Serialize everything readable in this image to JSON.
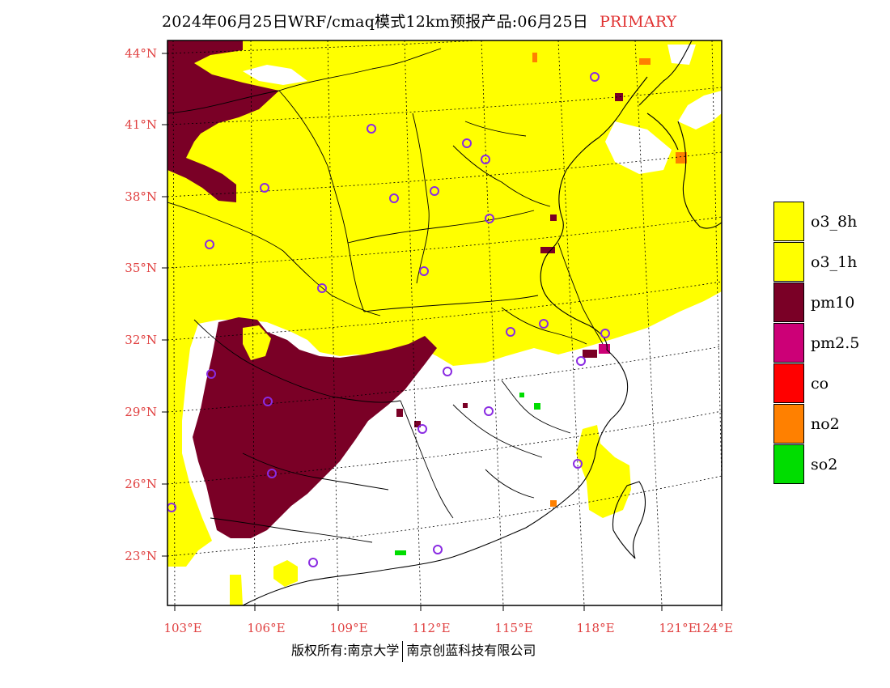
{
  "title": {
    "text": "2024年06月25日WRF/cmaq模式12km预报产品:06月25日",
    "tag": "PRIMARY"
  },
  "map": {
    "lat_labels": [
      "44°N",
      "41°N",
      "38°N",
      "35°N",
      "32°N",
      "29°N",
      "26°N",
      "23°N"
    ],
    "lon_labels": [
      "103°E",
      "106°E",
      "109°E",
      "112°E",
      "115°E",
      "118°E",
      "121°E",
      "124°E"
    ],
    "lon_range": [
      103,
      124
    ],
    "lat_range": [
      21,
      44.5
    ]
  },
  "legend": {
    "items": [
      {
        "label": "o3_8h",
        "color": "#ffff00"
      },
      {
        "label": "o3_1h",
        "color": "#ffff00"
      },
      {
        "label": "pm10",
        "color": "#7a0026"
      },
      {
        "label": "pm2.5",
        "color": "#cc0077"
      },
      {
        "label": "co",
        "color": "#ff0000"
      },
      {
        "label": "no2",
        "color": "#ff8000"
      },
      {
        "label": "so2",
        "color": "#00dd00"
      }
    ]
  },
  "colors": {
    "axis_label": "#e04040",
    "frame": "#000000",
    "station": "#8a2be2"
  },
  "credit": {
    "left": "版权所有:南京大学",
    "right": "南京创蓝科技有限公司"
  }
}
